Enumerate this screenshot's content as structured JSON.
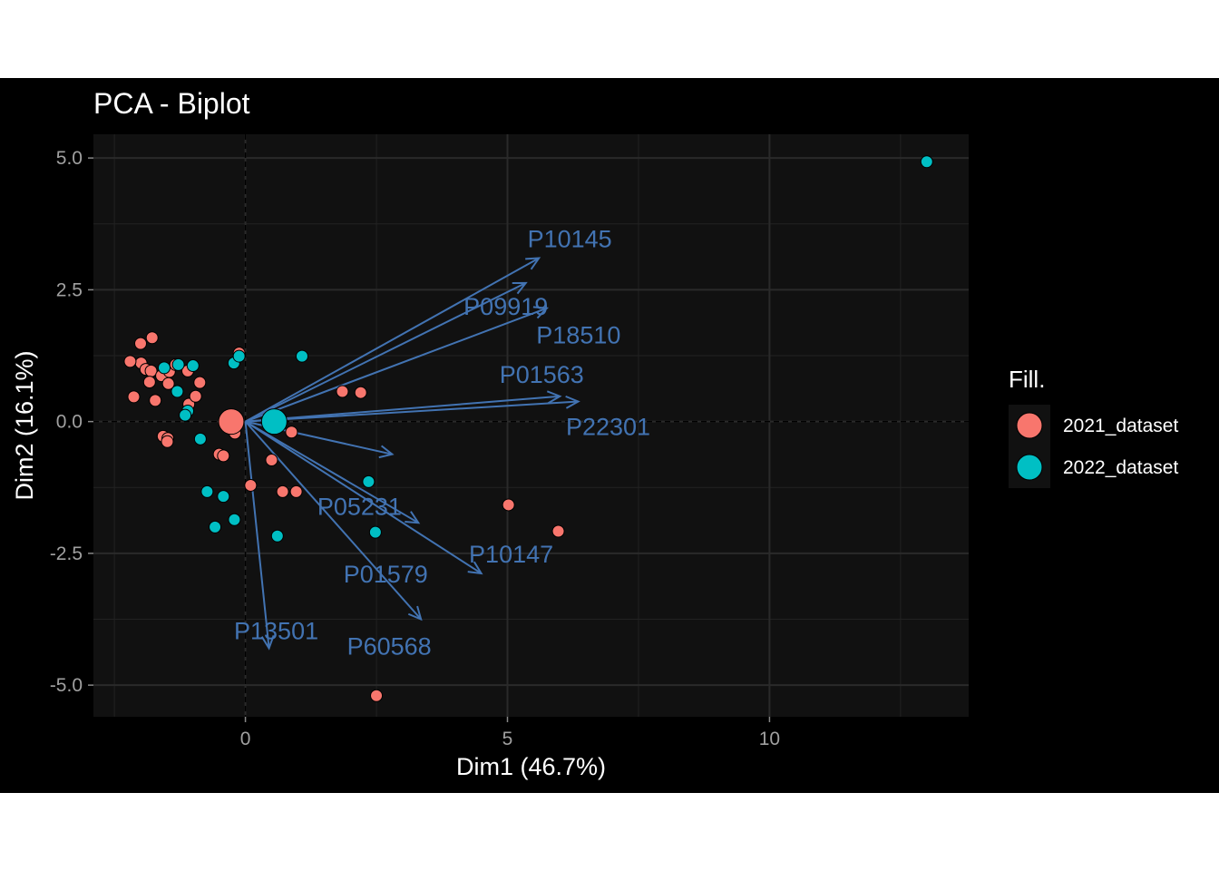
{
  "chart_data": {
    "type": "scatter",
    "title": "PCA - Biplot",
    "xlabel": "Dim1 (46.7%)",
    "ylabel": "Dim2 (16.1%)",
    "xlim": [
      -2.9,
      13.8
    ],
    "ylim": [
      -5.6,
      5.45
    ],
    "x_ticks": [
      0,
      5,
      10
    ],
    "x_tick_labels": [
      "0",
      "5",
      "10"
    ],
    "y_ticks": [
      -5.0,
      -2.5,
      0.0,
      2.5,
      5.0
    ],
    "y_tick_labels": [
      "-5.0",
      "-2.5",
      "0.0",
      "2.5",
      "5.0"
    ],
    "grid": true,
    "legend": {
      "title": "Fill.",
      "position": "right"
    },
    "series": [
      {
        "name": "2021_dataset",
        "color": "#F8766D",
        "centroid": [
          -0.27,
          0.0
        ],
        "points": [
          [
            -1.99,
            1.11
          ],
          [
            -2.13,
            0.47
          ],
          [
            -1.9,
            0.99
          ],
          [
            -1.8,
            0.96
          ],
          [
            -1.83,
            0.75
          ],
          [
            -1.72,
            0.4
          ],
          [
            -1.6,
            0.87
          ],
          [
            -1.47,
            0.72
          ],
          [
            -1.45,
            0.95
          ],
          [
            -1.57,
            -0.28
          ],
          [
            -1.48,
            -0.32
          ],
          [
            -1.49,
            -0.38
          ],
          [
            -1.33,
            1.08
          ],
          [
            -1.1,
            0.96
          ],
          [
            -1.08,
            0.33
          ],
          [
            -0.95,
            0.48
          ],
          [
            -0.87,
            0.74
          ],
          [
            -0.5,
            -0.62
          ],
          [
            -0.42,
            -0.65
          ],
          [
            -0.2,
            -0.22
          ],
          [
            -0.12,
            1.3
          ],
          [
            0.1,
            -1.21
          ],
          [
            0.5,
            -0.73
          ],
          [
            0.71,
            -1.33
          ],
          [
            0.88,
            -0.2
          ],
          [
            0.97,
            -1.33
          ],
          [
            1.85,
            0.57
          ],
          [
            2.2,
            0.55
          ],
          [
            5.02,
            -1.58
          ],
          [
            5.97,
            -2.08
          ],
          [
            2.5,
            -5.2
          ],
          [
            -1.78,
            1.59
          ],
          [
            -2.0,
            1.48
          ],
          [
            -2.2,
            1.14
          ]
        ]
      },
      {
        "name": "2022_dataset",
        "color": "#00BFC4",
        "centroid": [
          0.55,
          0.0
        ],
        "points": [
          [
            -1.55,
            1.02
          ],
          [
            -1.28,
            1.08
          ],
          [
            -1.0,
            1.06
          ],
          [
            -0.22,
            1.11
          ],
          [
            -0.12,
            1.24
          ],
          [
            1.08,
            1.24
          ],
          [
            -1.3,
            0.57
          ],
          [
            -1.1,
            0.2
          ],
          [
            -1.15,
            0.12
          ],
          [
            -0.86,
            -0.33
          ],
          [
            -0.73,
            -1.33
          ],
          [
            -0.58,
            -2.0
          ],
          [
            -0.42,
            -1.42
          ],
          [
            -0.21,
            -1.86
          ],
          [
            0.61,
            -2.17
          ],
          [
            2.35,
            -1.14
          ],
          [
            2.48,
            -2.1
          ],
          [
            13.0,
            4.93
          ]
        ]
      }
    ],
    "variables": [
      {
        "name": "P10145",
        "x": 5.6,
        "y": 3.1
      },
      {
        "name": "P09919",
        "x": 5.35,
        "y": 2.63
      },
      {
        "name": "P18510",
        "x": 5.75,
        "y": 2.15
      },
      {
        "name": "P01563",
        "x": 6.0,
        "y": 0.48
      },
      {
        "name": "P22301",
        "x": 6.35,
        "y": 0.38
      },
      {
        "name": "P05231",
        "x": 2.8,
        "y": -0.62
      },
      {
        "name": "P01579",
        "x": 3.3,
        "y": -1.92
      },
      {
        "name": "P10147",
        "x": 4.5,
        "y": -2.88
      },
      {
        "name": "P13501",
        "x": 0.45,
        "y": -4.3
      },
      {
        "name": "P60568",
        "x": 3.35,
        "y": -3.75
      }
    ],
    "variable_color": "#4273B2"
  }
}
